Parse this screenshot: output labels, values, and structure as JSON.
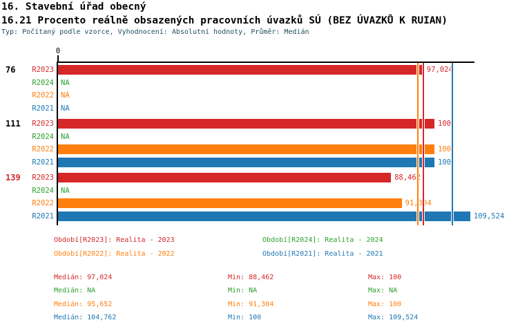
{
  "header": {
    "title": "16. Stavební úřad obecný",
    "subtitle": "16.21 Procento reálně obsazených pracovních úvazků SÚ (BEZ ÚVAZKŮ K RUIAN)",
    "meta": "Typ: Počítaný podle vzorce, Vyhodnocení: Absolutní hodnoty, Průměr: Medián"
  },
  "chart_data": {
    "type": "bar",
    "orientation": "horizontal",
    "x_axis": {
      "min": 0,
      "min_label": "0",
      "max": 110.6,
      "gridlines": false
    },
    "series_order": [
      "R2023",
      "R2024",
      "R2022",
      "R2021"
    ],
    "series_colors": {
      "R2023": "#d62728",
      "R2024": "#2ca02c",
      "R2022": "#ff7f0e",
      "R2021": "#1f77b4"
    },
    "group_label_colors": {
      "normal": "#000000",
      "highlight": "#d62728"
    },
    "groups": [
      {
        "label": "76",
        "highlight": false,
        "bars": [
          {
            "series": "R2023",
            "value": 97.024,
            "display": "97,024"
          },
          {
            "series": "R2024",
            "value": null,
            "display": "NA"
          },
          {
            "series": "R2022",
            "value": null,
            "display": "NA"
          },
          {
            "series": "R2021",
            "value": null,
            "display": "NA"
          }
        ]
      },
      {
        "label": "111",
        "highlight": false,
        "bars": [
          {
            "series": "R2023",
            "value": 100,
            "display": "100"
          },
          {
            "series": "R2024",
            "value": null,
            "display": "NA"
          },
          {
            "series": "R2022",
            "value": 100,
            "display": "100"
          },
          {
            "series": "R2021",
            "value": 100,
            "display": "100"
          }
        ]
      },
      {
        "label": "139",
        "highlight": true,
        "bars": [
          {
            "series": "R2023",
            "value": 88.462,
            "display": "88,462"
          },
          {
            "series": "R2024",
            "value": null,
            "display": "NA"
          },
          {
            "series": "R2022",
            "value": 91.304,
            "display": "91,304"
          },
          {
            "series": "R2021",
            "value": 109.524,
            "display": "109,524"
          }
        ]
      }
    ],
    "median_lines": [
      {
        "series": "R2022",
        "value": 95.652
      },
      {
        "series": "R2023",
        "value": 97.024
      },
      {
        "series": "R2021",
        "value": 104.762
      }
    ],
    "legend": [
      {
        "series": "R2023",
        "label": "Období[R2023]: Realita - 2023"
      },
      {
        "series": "R2024",
        "label": "Období[R2024]: Realita - 2024"
      },
      {
        "series": "R2022",
        "label": "Období[R2022]: Realita - 2022"
      },
      {
        "series": "R2021",
        "label": "Období[R2021]: Realita - 2021"
      }
    ],
    "stats": {
      "labels": {
        "median": "Medián",
        "min": "Min",
        "max": "Max"
      },
      "rows": [
        {
          "series": "R2023",
          "median": "97,024",
          "min": "88,462",
          "max": "100"
        },
        {
          "series": "R2024",
          "median": "NA",
          "min": "NA",
          "max": "NA"
        },
        {
          "series": "R2022",
          "median": "95,652",
          "min": "91,304",
          "max": "100"
        },
        {
          "series": "R2021",
          "median": "104,762",
          "min": "100",
          "max": "109,524"
        }
      ]
    }
  }
}
